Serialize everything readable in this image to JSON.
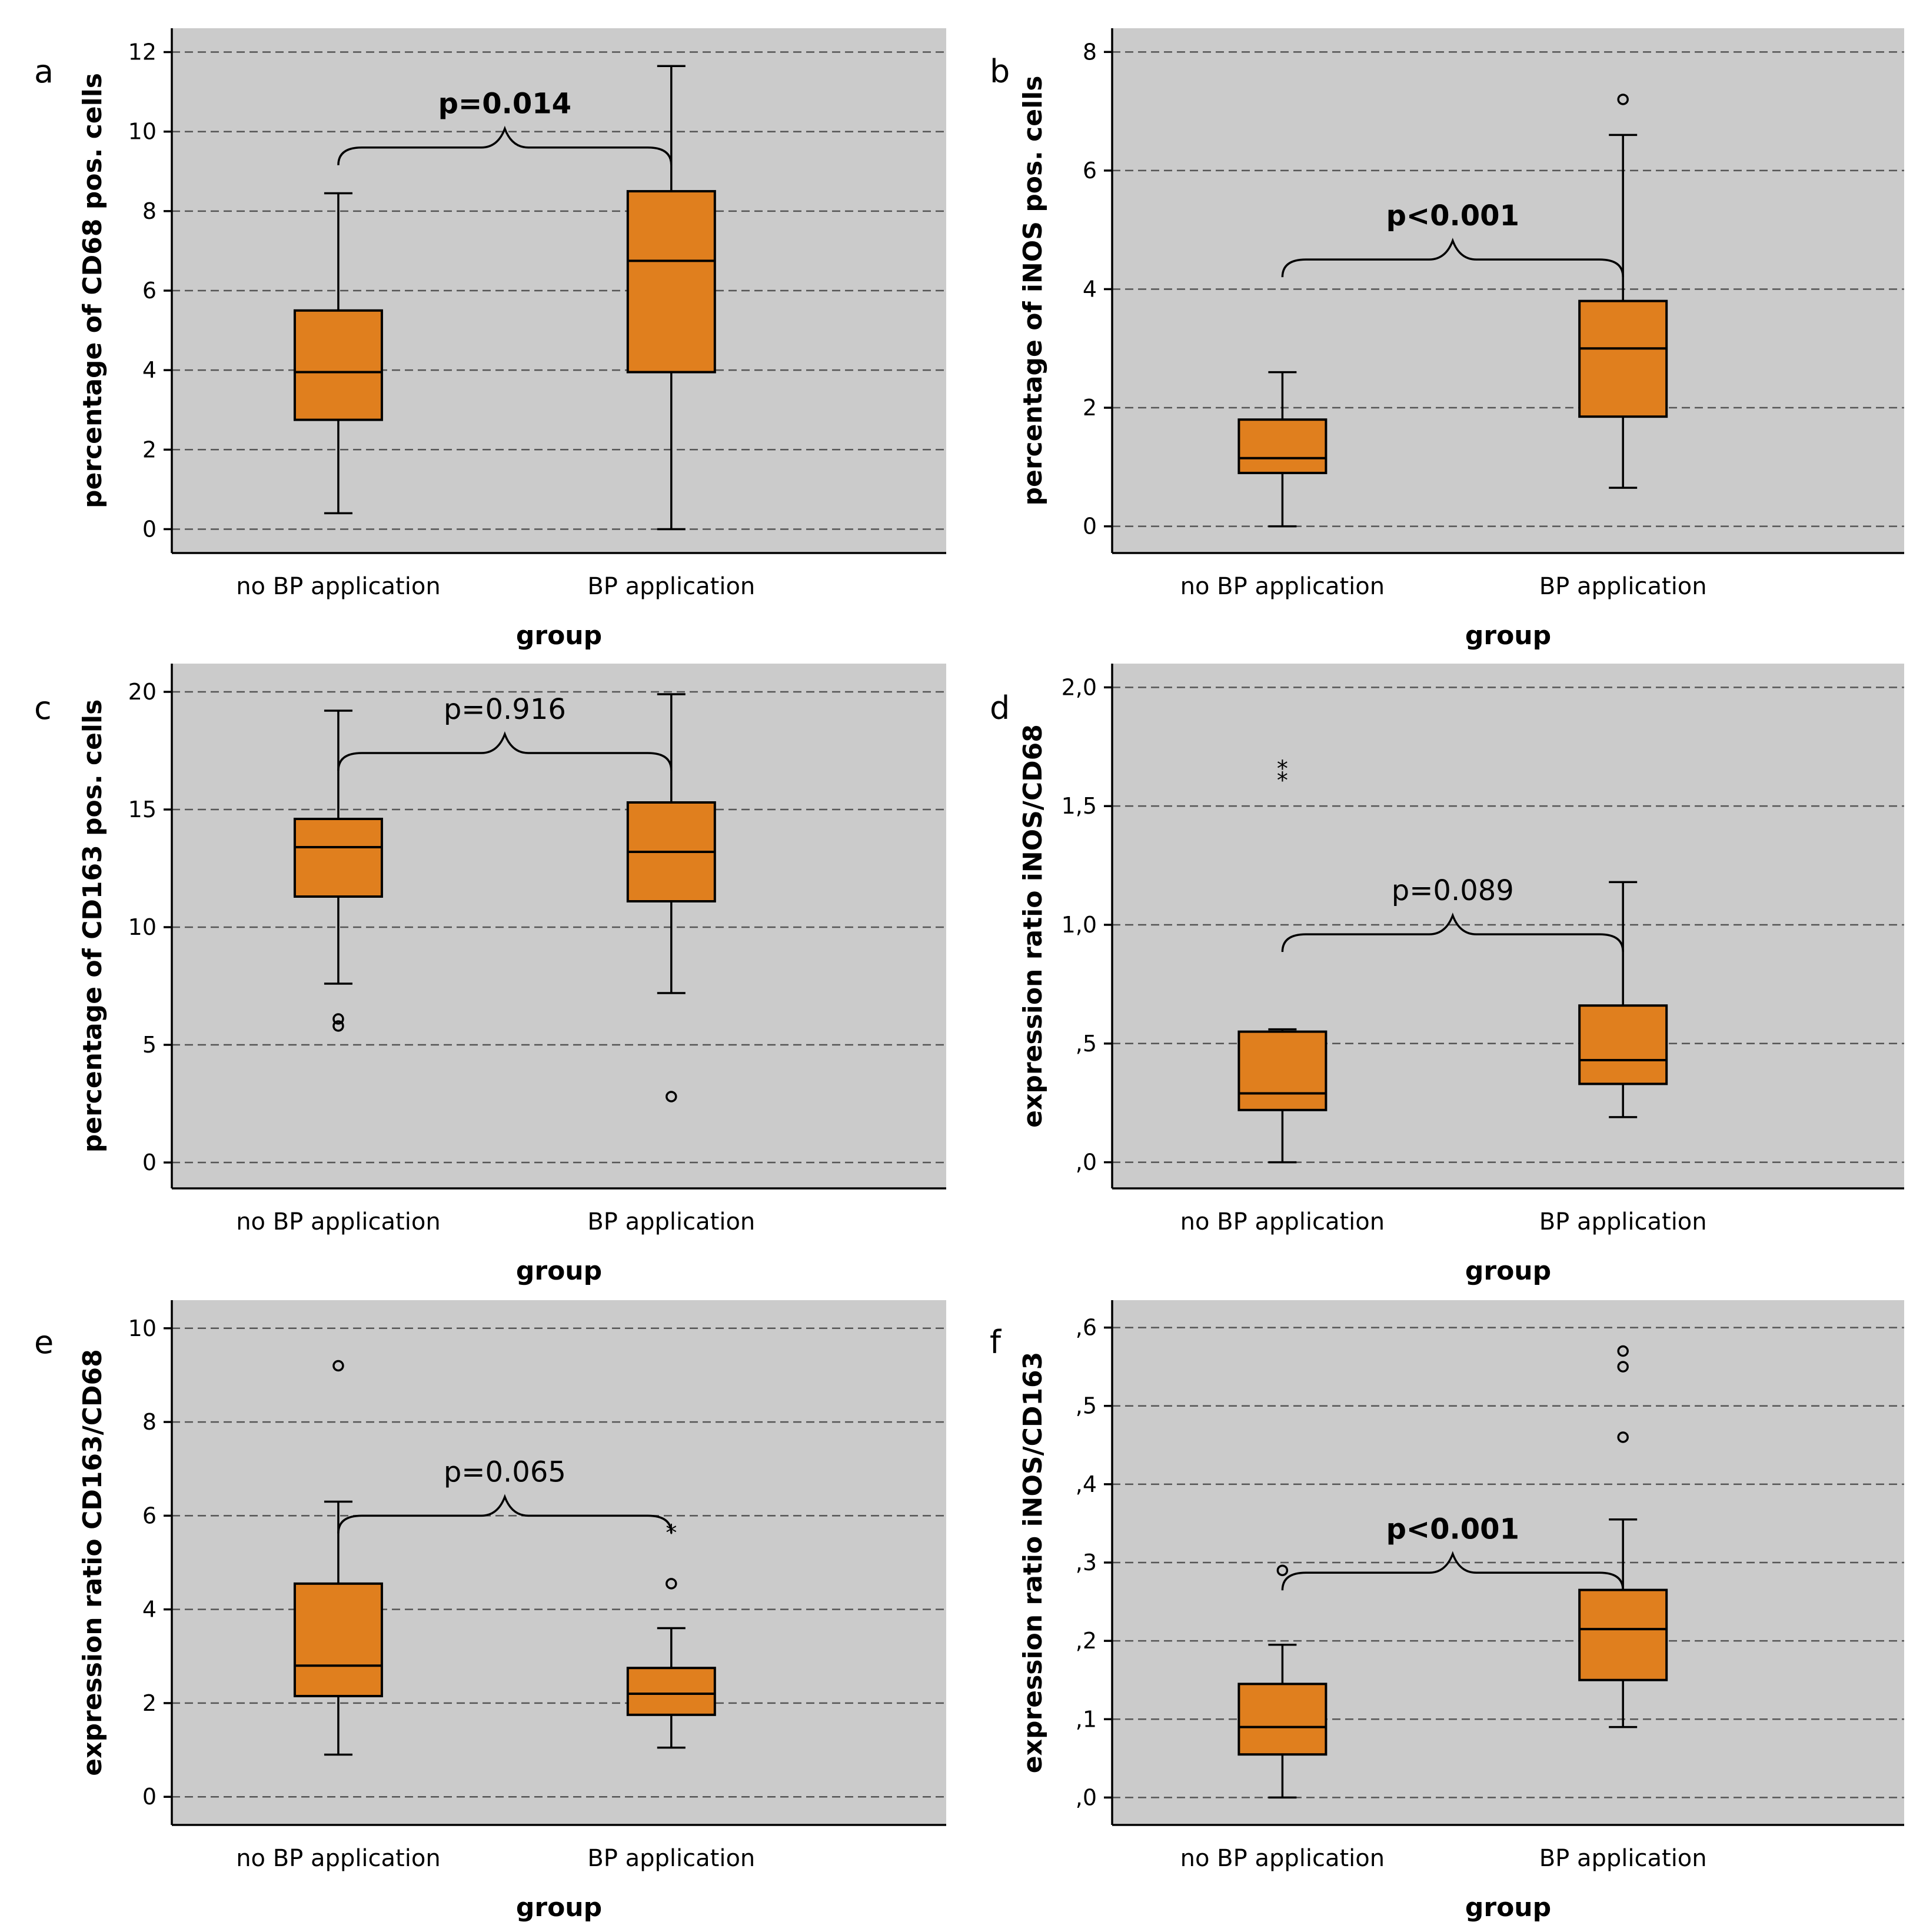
{
  "colors": {
    "panel_bg": "#cbcbcb",
    "box_fill": "#e07f1e",
    "stroke": "#000000"
  },
  "chart_data": [
    {
      "type": "box",
      "panel": "a",
      "ylabel": "percentage of CD68 pos. cells",
      "xlabel": "group",
      "ylim": [
        -0.6,
        12.6
      ],
      "yticks": [
        0,
        2,
        4,
        6,
        8,
        10,
        12
      ],
      "ytick_labels": [
        "0",
        "2",
        "4",
        "6",
        "8",
        "10",
        "12"
      ],
      "categories": [
        "no BP application",
        "BP application"
      ],
      "boxes": [
        {
          "min": 0.4,
          "q1": 2.75,
          "median": 3.95,
          "q3": 5.5,
          "max": 8.45,
          "outliers": [],
          "extremes": []
        },
        {
          "min": 0.0,
          "q1": 3.95,
          "median": 6.75,
          "q3": 8.5,
          "max": 11.65,
          "outliers": [],
          "extremes": []
        }
      ],
      "p_value": "p=0.014",
      "p_bold": true,
      "brace_y": 9.6
    },
    {
      "type": "box",
      "panel": "b",
      "ylabel": "percentage of iNOS pos. cells",
      "xlabel": "group",
      "ylim": [
        -0.45,
        8.4
      ],
      "yticks": [
        0,
        2,
        4,
        6,
        8
      ],
      "ytick_labels": [
        "0",
        "2",
        "4",
        "6",
        "8"
      ],
      "categories": [
        "no BP application",
        "BP application"
      ],
      "boxes": [
        {
          "min": 0.0,
          "q1": 0.9,
          "median": 1.15,
          "q3": 1.8,
          "max": 2.6,
          "outliers": [],
          "extremes": []
        },
        {
          "min": 0.65,
          "q1": 1.85,
          "median": 3.0,
          "q3": 3.8,
          "max": 6.6,
          "outliers": [
            7.2
          ],
          "extremes": []
        }
      ],
      "p_value": "p<0.001",
      "p_bold": true,
      "brace_y": 4.5
    },
    {
      "type": "box",
      "panel": "c",
      "ylabel": "percentage of CD163 pos. cells",
      "xlabel": "group",
      "ylim": [
        -1.1,
        21.2
      ],
      "yticks": [
        0,
        5,
        10,
        15,
        20
      ],
      "ytick_labels": [
        "0",
        "5",
        "10",
        "15",
        "20"
      ],
      "categories": [
        "no BP application",
        "BP application"
      ],
      "boxes": [
        {
          "min": 7.6,
          "q1": 11.3,
          "median": 13.4,
          "q3": 14.6,
          "max": 19.2,
          "outliers": [
            6.1,
            5.8
          ],
          "extremes": []
        },
        {
          "min": 7.2,
          "q1": 11.1,
          "median": 13.2,
          "q3": 15.3,
          "max": 19.9,
          "outliers": [
            2.8
          ],
          "extremes": []
        }
      ],
      "p_value": "p=0.916",
      "p_bold": false,
      "brace_y": 17.4
    },
    {
      "type": "box",
      "panel": "d",
      "ylabel": "expression ratio iNOS/CD68",
      "xlabel": "group",
      "ylim": [
        -0.11,
        2.1
      ],
      "yticks": [
        0,
        0.5,
        1.0,
        1.5,
        2.0
      ],
      "ytick_labels": [
        ",0",
        ",5",
        "1,0",
        "1,5",
        "2,0"
      ],
      "categories": [
        "no BP application",
        "BP application"
      ],
      "boxes": [
        {
          "min": 0.0,
          "q1": 0.22,
          "median": 0.29,
          "q3": 0.55,
          "max": 0.56,
          "outliers": [],
          "extremes": [
            1.68,
            1.63
          ]
        },
        {
          "min": 0.19,
          "q1": 0.33,
          "median": 0.43,
          "q3": 0.66,
          "max": 1.18,
          "outliers": [],
          "extremes": []
        }
      ],
      "p_value": "p=0.089",
      "p_bold": false,
      "brace_y": 0.96
    },
    {
      "type": "box",
      "panel": "e",
      "ylabel": "expression ratio CD163/CD68",
      "xlabel": "group",
      "ylim": [
        -0.6,
        10.6
      ],
      "yticks": [
        0,
        2,
        4,
        6,
        8,
        10
      ],
      "ytick_labels": [
        "0",
        "2",
        "4",
        "6",
        "8",
        "10"
      ],
      "categories": [
        "no BP application",
        "BP application"
      ],
      "boxes": [
        {
          "min": 0.9,
          "q1": 2.15,
          "median": 2.8,
          "q3": 4.55,
          "max": 6.3,
          "outliers": [
            9.2
          ],
          "extremes": []
        },
        {
          "min": 1.05,
          "q1": 1.75,
          "median": 2.2,
          "q3": 2.75,
          "max": 3.6,
          "outliers": [
            4.55
          ],
          "extremes": [
            5.75
          ]
        }
      ],
      "p_value": "p=0.065",
      "p_bold": false,
      "brace_y": 6.0
    },
    {
      "type": "box",
      "panel": "f",
      "ylabel": "expression ratio iNOS/CD163",
      "xlabel": "group",
      "ylim": [
        -0.035,
        0.635
      ],
      "yticks": [
        0,
        0.1,
        0.2,
        0.3,
        0.4,
        0.5,
        0.6
      ],
      "ytick_labels": [
        ",0",
        ",1",
        ",2",
        ",3",
        ",4",
        ",5",
        ",6"
      ],
      "categories": [
        "no BP application",
        "BP application"
      ],
      "boxes": [
        {
          "min": 0.0,
          "q1": 0.055,
          "median": 0.09,
          "q3": 0.145,
          "max": 0.195,
          "outliers": [
            0.29
          ],
          "extremes": []
        },
        {
          "min": 0.09,
          "q1": 0.15,
          "median": 0.215,
          "q3": 0.265,
          "max": 0.355,
          "outliers": [
            0.57,
            0.55,
            0.46
          ],
          "extremes": []
        }
      ],
      "p_value": "p<0.001",
      "p_bold": true,
      "brace_y": 0.287
    }
  ]
}
